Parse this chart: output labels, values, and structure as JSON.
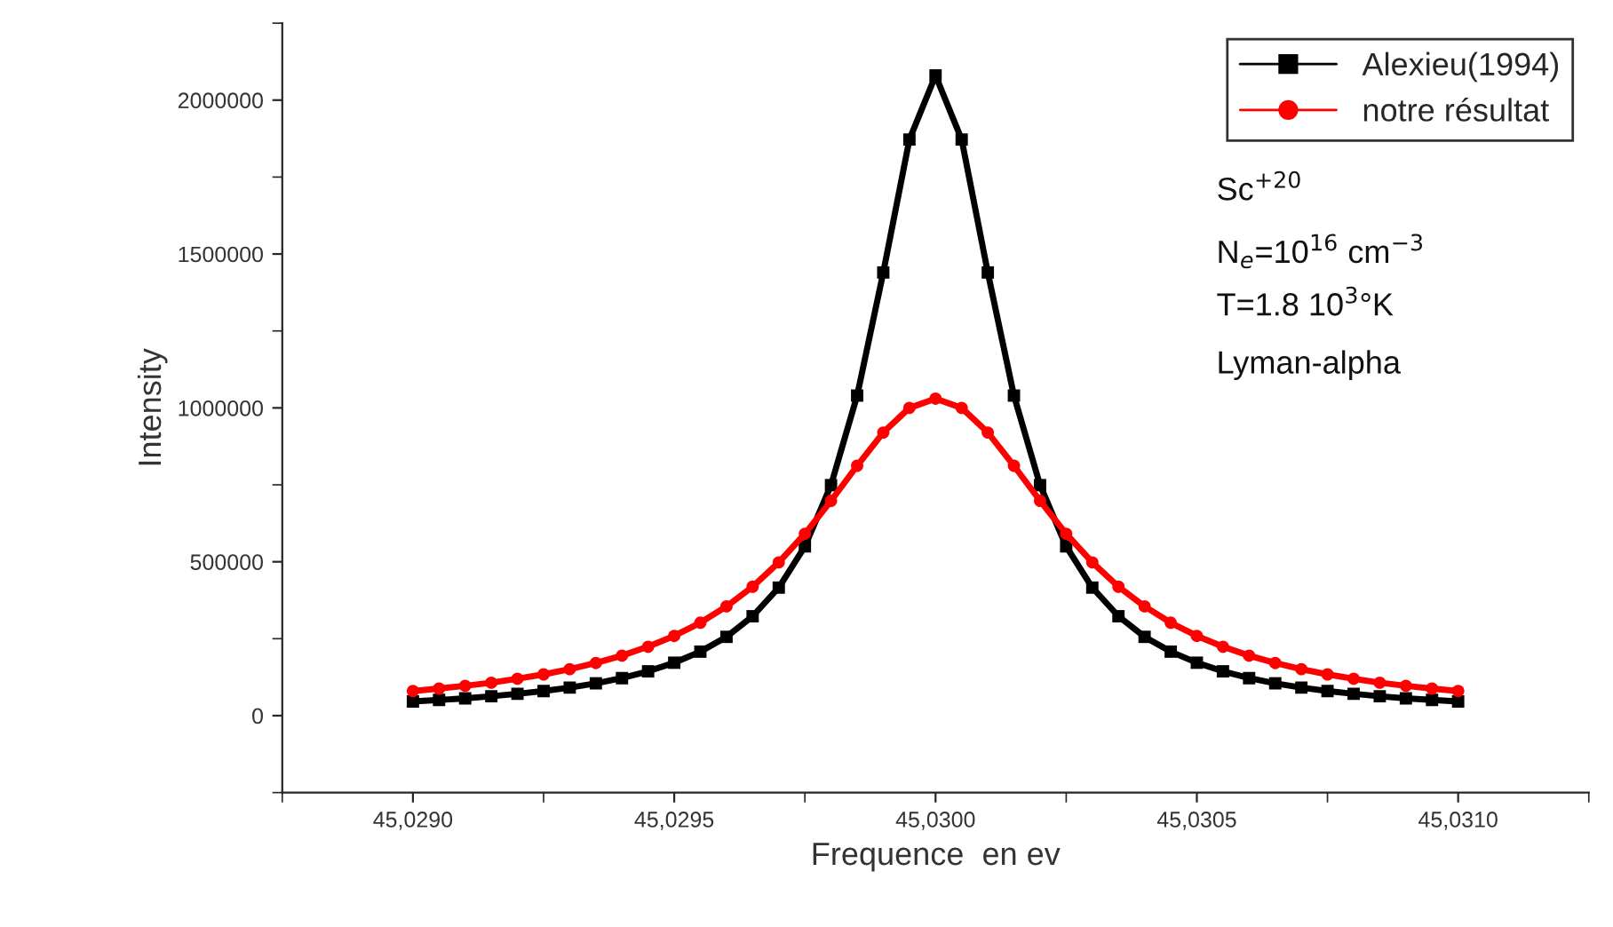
{
  "chart_data": {
    "type": "line",
    "xlabel": "Frequence  en ev",
    "ylabel": "Intensity",
    "categories": [
      "45,0290",
      null,
      null,
      null,
      null,
      null,
      null,
      null,
      null,
      null,
      "45,0295",
      null,
      null,
      null,
      null,
      null,
      null,
      null,
      null,
      null,
      "45,0300",
      null,
      null,
      null,
      null,
      null,
      null,
      null,
      null,
      null,
      "45,0305",
      null,
      null,
      null,
      null,
      null,
      null,
      null,
      null,
      null,
      "45,0310"
    ],
    "series": [
      {
        "name": "Alexieu(1994)",
        "color": "#000000",
        "marker": "square",
        "values": [
          46000,
          51000,
          56000,
          63000,
          71000,
          80000,
          91000,
          105000,
          122000,
          144000,
          172000,
          208000,
          256000,
          323000,
          416000,
          550000,
          749000,
          1040000,
          1440000,
          1872000,
          2080000,
          1872000,
          1440000,
          1040000,
          749000,
          550000,
          416000,
          323000,
          256000,
          208000,
          172000,
          144000,
          122000,
          105000,
          91000,
          80000,
          71000,
          63000,
          56000,
          51000,
          46000
        ]
      },
      {
        "name": "notre résultat",
        "color": "#ff0000",
        "marker": "circle",
        "values": [
          80000,
          88000,
          97000,
          107000,
          120000,
          134000,
          151000,
          171000,
          195000,
          224000,
          259000,
          302000,
          355000,
          419000,
          498000,
          591000,
          698000,
          812000,
          920000,
          1000000,
          1030000,
          1000000,
          920000,
          812000,
          698000,
          591000,
          498000,
          419000,
          355000,
          302000,
          259000,
          224000,
          195000,
          171000,
          151000,
          134000,
          120000,
          107000,
          97000,
          88000,
          80000
        ]
      }
    ],
    "ylim": [
      -250000,
      2250000
    ],
    "yticks": [
      0,
      500000,
      1000000,
      1500000,
      2000000
    ],
    "annotations": [
      "Sc$^{+20}$",
      "N$_{e}$=10$^{16}$ cm$^{−3}$",
      "T=1.8 10$^{3}$°K",
      "Lyman-alpha"
    ],
    "legend": "top right",
    "grid": false,
    "line_style": "solid"
  }
}
